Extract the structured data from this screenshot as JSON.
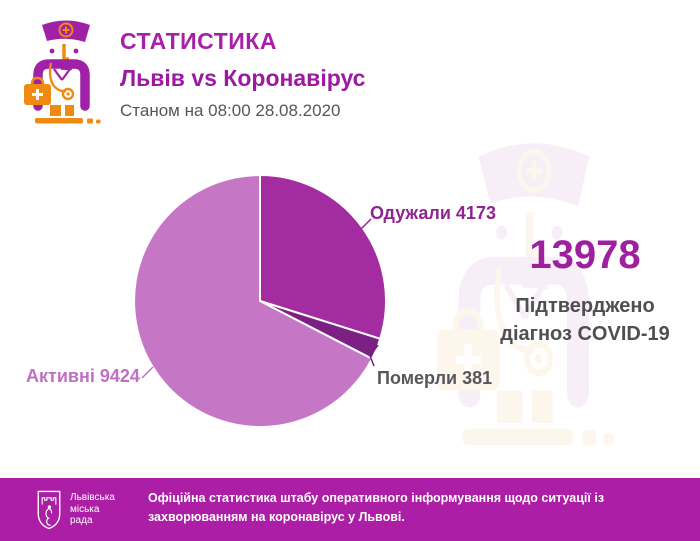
{
  "header": {
    "title": "СТАТИСТИКА",
    "subtitle": "Львів vs Коронавірус",
    "as_of": "Станом на 08:00 28.08.2020"
  },
  "chart_data": {
    "type": "pie",
    "title": "Львів vs Коронавірус — Станом на 08:00 28.08.2020",
    "total": 13978,
    "slices": [
      {
        "label": "Одужали",
        "value": 4173,
        "color": "#a32da0"
      },
      {
        "label": "Померли",
        "value": 381,
        "color": "#7c2083"
      },
      {
        "label": "Активні",
        "value": 9424,
        "color": "#c577c6"
      }
    ],
    "start_angle_deg": 0,
    "direction": "clockwise",
    "legend_position": "callouts"
  },
  "callouts": {
    "recovered": "Одужали 4173",
    "died": "Померли 381",
    "active": "Активні 9424"
  },
  "summary": {
    "total": "13978",
    "caption_line1": "Підтверджено",
    "caption_line2": "діагноз COVID-19"
  },
  "footer": {
    "logo_lines": [
      "Львівська",
      "міська",
      "рада"
    ],
    "text": "Офіційна статистика штабу оперативного інформування щодо ситуації із захворюванням на коронавірус у Львові."
  },
  "colors": {
    "title": "#a81fa8",
    "subtitle": "#9c1aa2",
    "as_of_text": "#55565a",
    "big_number": "#9e209e",
    "caption_text": "#4e4f51",
    "callout_recovered": "#8f2590",
    "callout_died": "#56575b",
    "callout_active": "#c06fc2",
    "footer_bg": "#ad1ea6",
    "doctor_purple": "#a021a8",
    "doctor_orange": "#ef8a12"
  }
}
